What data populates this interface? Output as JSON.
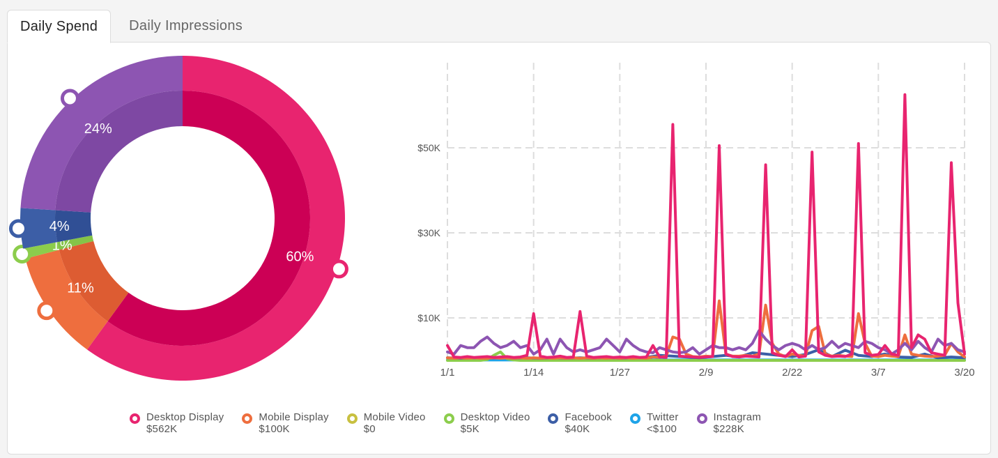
{
  "tabs": [
    {
      "label": "Daily Spend",
      "active": true
    },
    {
      "label": "Daily Impressions",
      "active": false
    }
  ],
  "colors": {
    "desktop_display": "#e8246f",
    "desktop_display_inner": "#cc0055",
    "mobile_display": "#ee6e3e",
    "mobile_display_inner": "#dd5c32",
    "mobile_video": "#c8c040",
    "desktop_video": "#8ccd4c",
    "desktop_video_inner": "#84c448",
    "facebook": "#3c5ea6",
    "facebook_inner": "#304f95",
    "twitter": "#1ea3e8",
    "instagram": "#8d55b2",
    "instagram_inner": "#7e48a3",
    "grid": "#dddddd"
  },
  "donut": {
    "segments": [
      {
        "key": "desktop_display",
        "percent": 60,
        "label": "60%"
      },
      {
        "key": "mobile_display",
        "percent": 11,
        "label": "11%"
      },
      {
        "key": "desktop_video",
        "percent": 1,
        "label": "1%"
      },
      {
        "key": "facebook",
        "percent": 4,
        "label": "4%"
      },
      {
        "key": "instagram",
        "percent": 24,
        "label": "24%"
      }
    ]
  },
  "legend": [
    {
      "key": "desktop_display",
      "name": "Desktop Display",
      "value": "$562K"
    },
    {
      "key": "mobile_display",
      "name": "Mobile Display",
      "value": "$100K"
    },
    {
      "key": "mobile_video",
      "name": "Mobile Video",
      "value": "$0"
    },
    {
      "key": "desktop_video",
      "name": "Desktop Video",
      "value": "$5K"
    },
    {
      "key": "facebook",
      "name": "Facebook",
      "value": "$40K"
    },
    {
      "key": "twitter",
      "name": "Twitter",
      "value": "<$100"
    },
    {
      "key": "instagram",
      "name": "Instagram",
      "value": "$228K"
    }
  ],
  "chart_data": {
    "type": "line",
    "x_ticks": [
      "1/1",
      "1/14",
      "1/27",
      "2/9",
      "2/22",
      "3/7",
      "3/20"
    ],
    "y_ticks": [
      "$10K",
      "$30K",
      "$50K"
    ],
    "y_tick_values": [
      10000,
      30000,
      50000
    ],
    "ylim": [
      0,
      70000
    ],
    "x_days": [
      0,
      78
    ],
    "grid": true,
    "series": [
      {
        "name": "Desktop Display",
        "key": "desktop_display",
        "points": [
          [
            0,
            3500
          ],
          [
            1,
            800
          ],
          [
            2,
            700
          ],
          [
            3,
            900
          ],
          [
            4,
            700
          ],
          [
            5,
            800
          ],
          [
            6,
            900
          ],
          [
            7,
            700
          ],
          [
            8,
            800
          ],
          [
            9,
            900
          ],
          [
            10,
            700
          ],
          [
            11,
            800
          ],
          [
            12,
            1200
          ],
          [
            13,
            11000
          ],
          [
            14,
            1000
          ],
          [
            15,
            700
          ],
          [
            16,
            800
          ],
          [
            17,
            1000
          ],
          [
            18,
            700
          ],
          [
            19,
            800
          ],
          [
            20,
            11500
          ],
          [
            21,
            1000
          ],
          [
            22,
            700
          ],
          [
            23,
            800
          ],
          [
            24,
            900
          ],
          [
            25,
            700
          ],
          [
            26,
            800
          ],
          [
            27,
            700
          ],
          [
            28,
            900
          ],
          [
            29,
            700
          ],
          [
            30,
            800
          ],
          [
            31,
            3500
          ],
          [
            32,
            800
          ],
          [
            33,
            700
          ],
          [
            34,
            55500
          ],
          [
            35,
            1000
          ],
          [
            36,
            900
          ],
          [
            37,
            800
          ],
          [
            38,
            700
          ],
          [
            39,
            800
          ],
          [
            40,
            900
          ],
          [
            41,
            50500
          ],
          [
            42,
            1500
          ],
          [
            43,
            900
          ],
          [
            44,
            800
          ],
          [
            45,
            1000
          ],
          [
            46,
            900
          ],
          [
            47,
            800
          ],
          [
            48,
            46000
          ],
          [
            49,
            1800
          ],
          [
            50,
            1200
          ],
          [
            51,
            900
          ],
          [
            52,
            2500
          ],
          [
            53,
            800
          ],
          [
            54,
            1000
          ],
          [
            55,
            49000
          ],
          [
            56,
            2000
          ],
          [
            57,
            1200
          ],
          [
            58,
            900
          ],
          [
            59,
            1000
          ],
          [
            60,
            900
          ],
          [
            61,
            1500
          ],
          [
            62,
            51000
          ],
          [
            63,
            1800
          ],
          [
            64,
            1200
          ],
          [
            65,
            1400
          ],
          [
            66,
            3500
          ],
          [
            67,
            1500
          ],
          [
            68,
            1200
          ],
          [
            69,
            62500
          ],
          [
            70,
            3000
          ],
          [
            71,
            6000
          ],
          [
            72,
            5000
          ],
          [
            73,
            1800
          ],
          [
            74,
            1500
          ],
          [
            75,
            1200
          ],
          [
            76,
            46500
          ],
          [
            77,
            13500
          ],
          [
            78,
            1500
          ]
        ]
      },
      {
        "name": "Mobile Display",
        "key": "mobile_display",
        "points": [
          [
            0,
            600
          ],
          [
            1,
            500
          ],
          [
            2,
            600
          ],
          [
            3,
            500
          ],
          [
            4,
            600
          ],
          [
            5,
            500
          ],
          [
            6,
            500
          ],
          [
            7,
            600
          ],
          [
            8,
            500
          ],
          [
            9,
            600
          ],
          [
            10,
            500
          ],
          [
            11,
            600
          ],
          [
            12,
            500
          ],
          [
            13,
            600
          ],
          [
            14,
            500
          ],
          [
            15,
            600
          ],
          [
            16,
            500
          ],
          [
            17,
            600
          ],
          [
            18,
            500
          ],
          [
            19,
            600
          ],
          [
            20,
            500
          ],
          [
            21,
            600
          ],
          [
            22,
            500
          ],
          [
            23,
            600
          ],
          [
            24,
            500
          ],
          [
            25,
            600
          ],
          [
            26,
            500
          ],
          [
            27,
            600
          ],
          [
            28,
            500
          ],
          [
            29,
            600
          ],
          [
            30,
            500
          ],
          [
            31,
            800
          ],
          [
            32,
            700
          ],
          [
            33,
            1000
          ],
          [
            34,
            5500
          ],
          [
            35,
            5000
          ],
          [
            36,
            1500
          ],
          [
            37,
            900
          ],
          [
            38,
            800
          ],
          [
            39,
            1000
          ],
          [
            40,
            900
          ],
          [
            41,
            14000
          ],
          [
            42,
            1500
          ],
          [
            43,
            1000
          ],
          [
            44,
            1000
          ],
          [
            45,
            1200
          ],
          [
            46,
            1000
          ],
          [
            47,
            1500
          ],
          [
            48,
            13000
          ],
          [
            49,
            4000
          ],
          [
            50,
            1500
          ],
          [
            51,
            900
          ],
          [
            52,
            1500
          ],
          [
            53,
            1200
          ],
          [
            54,
            1000
          ],
          [
            55,
            7000
          ],
          [
            56,
            8000
          ],
          [
            57,
            1500
          ],
          [
            58,
            1000
          ],
          [
            59,
            1200
          ],
          [
            60,
            1000
          ],
          [
            61,
            900
          ],
          [
            62,
            11000
          ],
          [
            63,
            4000
          ],
          [
            64,
            1000
          ],
          [
            65,
            900
          ],
          [
            66,
            1200
          ],
          [
            67,
            1000
          ],
          [
            68,
            900
          ],
          [
            69,
            6000
          ],
          [
            70,
            1500
          ],
          [
            71,
            1200
          ],
          [
            72,
            1000
          ],
          [
            73,
            900
          ],
          [
            74,
            1000
          ],
          [
            75,
            1200
          ],
          [
            76,
            4000
          ],
          [
            77,
            2000
          ],
          [
            78,
            800
          ]
        ]
      },
      {
        "name": "Desktop Video",
        "key": "desktop_video",
        "points": [
          [
            0,
            0
          ],
          [
            5,
            0
          ],
          [
            6,
            200
          ],
          [
            7,
            1200
          ],
          [
            8,
            2000
          ],
          [
            9,
            400
          ],
          [
            10,
            100
          ],
          [
            11,
            0
          ],
          [
            78,
            0
          ]
        ]
      },
      {
        "name": "Facebook",
        "key": "facebook",
        "points": [
          [
            0,
            600
          ],
          [
            2,
            500
          ],
          [
            4,
            600
          ],
          [
            6,
            500
          ],
          [
            8,
            600
          ],
          [
            10,
            500
          ],
          [
            12,
            600
          ],
          [
            14,
            500
          ],
          [
            16,
            600
          ],
          [
            18,
            500
          ],
          [
            20,
            600
          ],
          [
            22,
            500
          ],
          [
            24,
            700
          ],
          [
            26,
            500
          ],
          [
            28,
            600
          ],
          [
            30,
            700
          ],
          [
            32,
            1200
          ],
          [
            34,
            1000
          ],
          [
            36,
            800
          ],
          [
            38,
            600
          ],
          [
            40,
            900
          ],
          [
            42,
            1200
          ],
          [
            44,
            800
          ],
          [
            46,
            1800
          ],
          [
            48,
            1500
          ],
          [
            50,
            1200
          ],
          [
            52,
            900
          ],
          [
            54,
            1400
          ],
          [
            56,
            2500
          ],
          [
            58,
            900
          ],
          [
            60,
            2400
          ],
          [
            62,
            1200
          ],
          [
            64,
            900
          ],
          [
            66,
            1500
          ],
          [
            68,
            800
          ],
          [
            70,
            700
          ],
          [
            72,
            1500
          ],
          [
            74,
            600
          ],
          [
            76,
            800
          ],
          [
            78,
            600
          ]
        ]
      },
      {
        "name": "Twitter",
        "key": "twitter",
        "points": [
          [
            0,
            100
          ],
          [
            78,
            100
          ]
        ]
      },
      {
        "name": "Instagram",
        "key": "instagram",
        "points": [
          [
            0,
            2000
          ],
          [
            1,
            1500
          ],
          [
            2,
            3500
          ],
          [
            3,
            3000
          ],
          [
            4,
            3000
          ],
          [
            5,
            4500
          ],
          [
            6,
            5500
          ],
          [
            7,
            4000
          ],
          [
            8,
            3000
          ],
          [
            9,
            3500
          ],
          [
            10,
            4500
          ],
          [
            11,
            3000
          ],
          [
            12,
            3500
          ],
          [
            13,
            1500
          ],
          [
            14,
            2500
          ],
          [
            15,
            5000
          ],
          [
            16,
            1500
          ],
          [
            17,
            5000
          ],
          [
            18,
            3000
          ],
          [
            19,
            2000
          ],
          [
            20,
            2500
          ],
          [
            21,
            2000
          ],
          [
            22,
            2500
          ],
          [
            23,
            3000
          ],
          [
            24,
            5000
          ],
          [
            25,
            3500
          ],
          [
            26,
            2000
          ],
          [
            27,
            5000
          ],
          [
            28,
            3500
          ],
          [
            29,
            2500
          ],
          [
            30,
            2000
          ],
          [
            31,
            1800
          ],
          [
            32,
            3000
          ],
          [
            33,
            2500
          ],
          [
            34,
            2000
          ],
          [
            35,
            1800
          ],
          [
            36,
            2000
          ],
          [
            37,
            3000
          ],
          [
            38,
            1500
          ],
          [
            39,
            2500
          ],
          [
            40,
            3500
          ],
          [
            41,
            3000
          ],
          [
            42,
            3000
          ],
          [
            43,
            2500
          ],
          [
            44,
            3000
          ],
          [
            45,
            2500
          ],
          [
            46,
            4000
          ],
          [
            47,
            7000
          ],
          [
            48,
            5000
          ],
          [
            49,
            3500
          ],
          [
            50,
            2500
          ],
          [
            51,
            3500
          ],
          [
            52,
            4000
          ],
          [
            53,
            3500
          ],
          [
            54,
            2500
          ],
          [
            55,
            3500
          ],
          [
            56,
            2500
          ],
          [
            57,
            3000
          ],
          [
            58,
            4500
          ],
          [
            59,
            3000
          ],
          [
            60,
            4000
          ],
          [
            61,
            3500
          ],
          [
            62,
            3000
          ],
          [
            63,
            4500
          ],
          [
            64,
            4000
          ],
          [
            65,
            3000
          ],
          [
            66,
            2500
          ],
          [
            67,
            1500
          ],
          [
            68,
            2500
          ],
          [
            69,
            4000
          ],
          [
            70,
            2500
          ],
          [
            71,
            4500
          ],
          [
            72,
            3000
          ],
          [
            73,
            2000
          ],
          [
            74,
            5000
          ],
          [
            75,
            3500
          ],
          [
            76,
            4000
          ],
          [
            77,
            2500
          ],
          [
            78,
            2000
          ]
        ]
      }
    ]
  }
}
